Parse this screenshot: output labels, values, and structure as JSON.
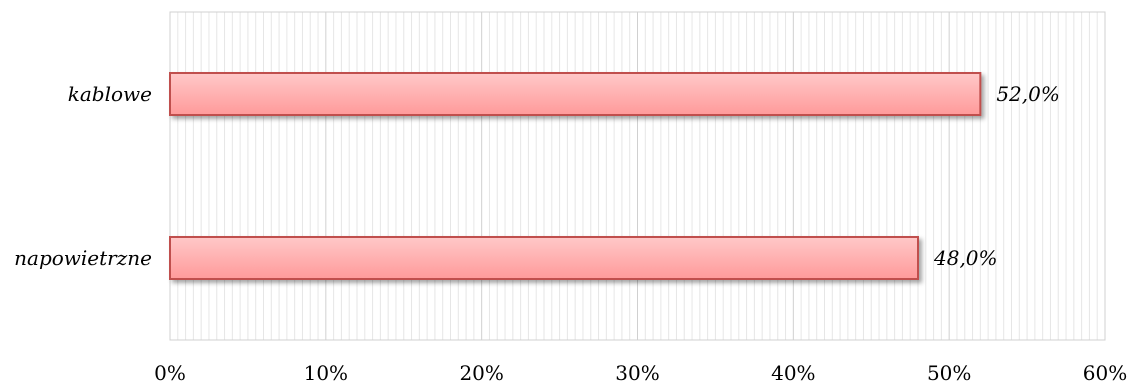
{
  "chart_data": {
    "type": "bar",
    "orientation": "horizontal",
    "categories": [
      "kablowe",
      "napowietrzne"
    ],
    "values": [
      52.0,
      48.0
    ],
    "value_labels": [
      "52,0%",
      "48,0%"
    ],
    "xlim": [
      0,
      60
    ],
    "x_ticks": [
      0,
      10,
      20,
      30,
      40,
      50,
      60
    ],
    "x_tick_labels": [
      "0%",
      "10%",
      "20%",
      "30%",
      "40%",
      "50%",
      "60%"
    ],
    "grid": true,
    "legend": "none",
    "colors": {
      "bar_fill_top": "#ffc8c8",
      "bar_fill_bottom": "#ff9a9a",
      "bar_border": "#c0504d",
      "grid_major": "#d0d0d0",
      "grid_minor": "#e6e6e6"
    }
  }
}
